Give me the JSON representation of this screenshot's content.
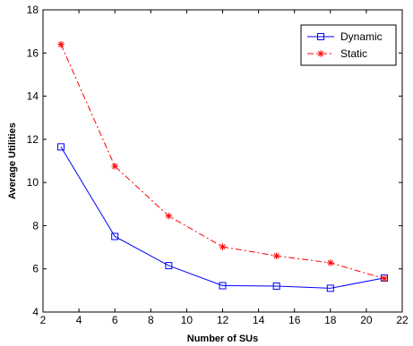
{
  "chart_data": {
    "type": "line",
    "xlabel": "Number of SUs",
    "ylabel": "Average Utilities",
    "xlim": [
      2,
      22
    ],
    "ylim": [
      4,
      18
    ],
    "xticks": [
      2,
      4,
      6,
      8,
      10,
      12,
      14,
      16,
      18,
      20,
      22
    ],
    "yticks": [
      4,
      6,
      8,
      10,
      12,
      14,
      16,
      18
    ],
    "grid": false,
    "legend_position": "top-right",
    "x": [
      3,
      6,
      9,
      12,
      15,
      18,
      21
    ],
    "series": [
      {
        "name": "Dynamic",
        "values": [
          11.65,
          7.5,
          6.15,
          5.22,
          5.2,
          5.1,
          5.58
        ],
        "color": "#0000ff",
        "line": "solid",
        "marker": "square"
      },
      {
        "name": "Static",
        "values": [
          16.4,
          10.75,
          8.45,
          7.02,
          6.6,
          6.28,
          5.55
        ],
        "color": "#ff0000",
        "line": "dash-dot",
        "marker": "asterisk"
      }
    ]
  }
}
